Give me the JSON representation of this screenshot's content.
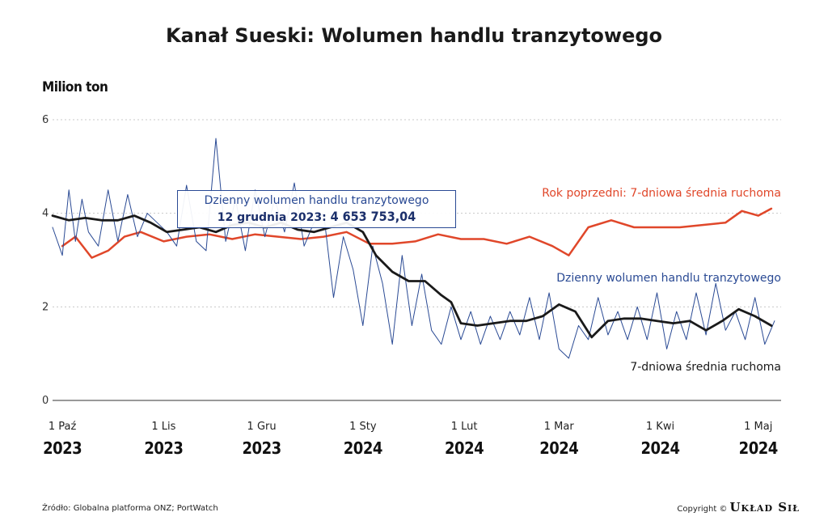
{
  "title": "Kanał Sueski: Wolumen handlu tranzytowego",
  "unit_label": "Milion ton",
  "tooltip": {
    "heading": "Dzienny wolumen handlu tranzytowego",
    "date": "12 grudnia 2023:",
    "value": "4 653 753,04"
  },
  "source": "Źródło: Globalna platforma ONZ; PortWatch",
  "copyright": "Copyright ©",
  "brand": "Układ Sił",
  "colors": {
    "daily": "#2a4a94",
    "ma7": "#1a1a1a",
    "prev_year": "#e0472a",
    "grid": "#c8c8c8",
    "axis": "#333333"
  },
  "chart_data": {
    "type": "line",
    "title": "Kanał Sueski: Wolumen handlu tranzytowego",
    "ylabel": "Milion ton",
    "ylim": [
      0,
      6
    ],
    "yticks": [
      0,
      2,
      4,
      6
    ],
    "x_start": "2023-09-28",
    "x_end": "2024-05-08",
    "xticks": [
      {
        "date": "2023-10-01",
        "label1": "1 Paź",
        "label2": "2023"
      },
      {
        "date": "2023-11-01",
        "label1": "1 Lis",
        "label2": "2023"
      },
      {
        "date": "2023-12-01",
        "label1": "1 Gru",
        "label2": "2023"
      },
      {
        "date": "2024-01-01",
        "label1": "1 Sty",
        "label2": "2024"
      },
      {
        "date": "2024-02-01",
        "label1": "1 Lut",
        "label2": "2024"
      },
      {
        "date": "2024-03-01",
        "label1": "1 Mar",
        "label2": "2024"
      },
      {
        "date": "2024-04-01",
        "label1": "1 Kwi",
        "label2": "2024"
      },
      {
        "date": "2024-05-01",
        "label1": "1 Maj",
        "label2": "2024"
      }
    ],
    "grid": true,
    "series": [
      {
        "name": "Rok poprzedni: 7-dniowa średnia ruchoma",
        "color": "#e0472a",
        "x": [
          "2023-10-01",
          "2023-10-05",
          "2023-10-10",
          "2023-10-15",
          "2023-10-20",
          "2023-10-25",
          "2023-11-01",
          "2023-11-08",
          "2023-11-15",
          "2023-11-22",
          "2023-11-29",
          "2023-12-06",
          "2023-12-13",
          "2023-12-20",
          "2023-12-27",
          "2024-01-03",
          "2024-01-10",
          "2024-01-17",
          "2024-01-24",
          "2024-01-31",
          "2024-02-07",
          "2024-02-14",
          "2024-02-21",
          "2024-02-28",
          "2024-03-04",
          "2024-03-10",
          "2024-03-17",
          "2024-03-24",
          "2024-03-31",
          "2024-04-07",
          "2024-04-14",
          "2024-04-21",
          "2024-04-26",
          "2024-05-01",
          "2024-05-05"
        ],
        "y": [
          3.3,
          3.5,
          3.05,
          3.2,
          3.5,
          3.6,
          3.4,
          3.5,
          3.55,
          3.45,
          3.55,
          3.5,
          3.45,
          3.5,
          3.6,
          3.35,
          3.35,
          3.4,
          3.55,
          3.45,
          3.45,
          3.35,
          3.5,
          3.3,
          3.1,
          3.7,
          3.85,
          3.7,
          3.7,
          3.7,
          3.75,
          3.8,
          4.05,
          3.95,
          4.1
        ]
      },
      {
        "name": "Dzienny wolumen handlu tranzytowego",
        "color": "#2a4a94",
        "x": [
          "2023-09-28",
          "2023-10-01",
          "2023-10-03",
          "2023-10-05",
          "2023-10-07",
          "2023-10-09",
          "2023-10-12",
          "2023-10-15",
          "2023-10-18",
          "2023-10-21",
          "2023-10-24",
          "2023-10-27",
          "2023-10-30",
          "2023-11-02",
          "2023-11-05",
          "2023-11-08",
          "2023-11-11",
          "2023-11-14",
          "2023-11-17",
          "2023-11-20",
          "2023-11-23",
          "2023-11-26",
          "2023-11-29",
          "2023-12-02",
          "2023-12-05",
          "2023-12-08",
          "2023-12-11",
          "2023-12-14",
          "2023-12-17",
          "2023-12-20",
          "2023-12-23",
          "2023-12-26",
          "2023-12-29",
          "2024-01-01",
          "2024-01-04",
          "2024-01-07",
          "2024-01-10",
          "2024-01-13",
          "2024-01-16",
          "2024-01-19",
          "2024-01-22",
          "2024-01-25",
          "2024-01-28",
          "2024-01-31",
          "2024-02-03",
          "2024-02-06",
          "2024-02-09",
          "2024-02-12",
          "2024-02-15",
          "2024-02-18",
          "2024-02-21",
          "2024-02-24",
          "2024-02-27",
          "2024-03-01",
          "2024-03-04",
          "2024-03-07",
          "2024-03-10",
          "2024-03-13",
          "2024-03-16",
          "2024-03-19",
          "2024-03-22",
          "2024-03-25",
          "2024-03-28",
          "2024-03-31",
          "2024-04-03",
          "2024-04-06",
          "2024-04-09",
          "2024-04-12",
          "2024-04-15",
          "2024-04-18",
          "2024-04-21",
          "2024-04-24",
          "2024-04-27",
          "2024-04-30",
          "2024-05-03",
          "2024-05-06"
        ],
        "y": [
          3.7,
          3.1,
          4.5,
          3.4,
          4.3,
          3.6,
          3.3,
          4.5,
          3.4,
          4.4,
          3.5,
          4.0,
          3.8,
          3.6,
          3.3,
          4.6,
          3.4,
          3.2,
          5.6,
          3.4,
          4.3,
          3.2,
          4.5,
          3.5,
          4.3,
          3.6,
          4.65,
          3.3,
          3.8,
          4.0,
          2.2,
          3.5,
          2.8,
          1.6,
          3.3,
          2.5,
          1.2,
          3.1,
          1.6,
          2.7,
          1.5,
          1.2,
          2.0,
          1.3,
          1.9,
          1.2,
          1.8,
          1.3,
          1.9,
          1.4,
          2.2,
          1.3,
          2.3,
          1.1,
          0.9,
          1.6,
          1.3,
          2.2,
          1.4,
          1.9,
          1.3,
          2.0,
          1.3,
          2.3,
          1.1,
          1.9,
          1.3,
          2.3,
          1.4,
          2.5,
          1.5,
          1.9,
          1.3,
          2.2,
          1.2,
          1.7
        ]
      },
      {
        "name": "7-dniowa średnia ruchoma",
        "color": "#1a1a1a",
        "x": [
          "2023-09-28",
          "2023-10-03",
          "2023-10-08",
          "2023-10-13",
          "2023-10-18",
          "2023-10-23",
          "2023-10-28",
          "2023-11-02",
          "2023-11-07",
          "2023-11-12",
          "2023-11-17",
          "2023-11-22",
          "2023-11-27",
          "2023-12-02",
          "2023-12-07",
          "2023-12-12",
          "2023-12-17",
          "2023-12-22",
          "2023-12-27",
          "2024-01-01",
          "2024-01-05",
          "2024-01-10",
          "2024-01-15",
          "2024-01-20",
          "2024-01-25",
          "2024-01-28",
          "2024-01-31",
          "2024-02-05",
          "2024-02-10",
          "2024-02-15",
          "2024-02-20",
          "2024-02-25",
          "2024-03-01",
          "2024-03-06",
          "2024-03-11",
          "2024-03-16",
          "2024-03-21",
          "2024-03-26",
          "2024-03-31",
          "2024-04-05",
          "2024-04-10",
          "2024-04-15",
          "2024-04-20",
          "2024-04-25",
          "2024-04-30",
          "2024-05-05"
        ],
        "y": [
          3.95,
          3.85,
          3.9,
          3.85,
          3.85,
          3.95,
          3.8,
          3.6,
          3.65,
          3.7,
          3.6,
          3.75,
          3.8,
          3.7,
          3.8,
          3.65,
          3.6,
          3.7,
          3.8,
          3.6,
          3.1,
          2.75,
          2.55,
          2.55,
          2.25,
          2.1,
          1.65,
          1.6,
          1.65,
          1.7,
          1.7,
          1.8,
          2.05,
          1.9,
          1.35,
          1.7,
          1.75,
          1.75,
          1.7,
          1.65,
          1.7,
          1.5,
          1.7,
          1.95,
          1.8,
          1.6
        ]
      }
    ],
    "series_labels": [
      {
        "text": "Rok poprzedni: 7-dniowa średnia ruchoma",
        "anchor": "end",
        "at": "right"
      },
      {
        "text": "Dzienny wolumen handlu tranzytowego",
        "anchor": "end",
        "at": "right"
      },
      {
        "text": "7-dniowa średnia ruchoma",
        "anchor": "end",
        "at": "right"
      }
    ]
  }
}
